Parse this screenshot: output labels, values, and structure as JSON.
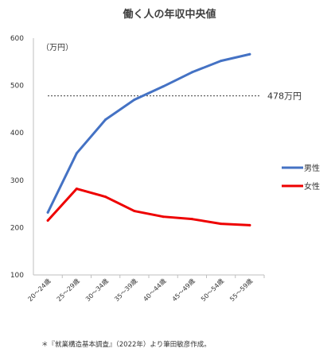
{
  "chart_data": {
    "type": "line",
    "title": "働く人の年収中央値",
    "unit_label": "（万円）",
    "categories": [
      "20〜24歳",
      "25〜29歳",
      "30〜34歳",
      "35〜39歳",
      "40〜44歳",
      "45〜49歳",
      "50〜54歳",
      "55〜59歳"
    ],
    "series": [
      {
        "name": "男性",
        "color": "#4472c4",
        "values": [
          232,
          357,
          428,
          470,
          498,
          528,
          552,
          566
        ]
      },
      {
        "name": "女性",
        "color": "#ee0000",
        "values": [
          215,
          282,
          265,
          235,
          223,
          218,
          208,
          205
        ]
      }
    ],
    "ylim": [
      100,
      600
    ],
    "yticks": [
      100,
      200,
      300,
      400,
      500,
      600
    ],
    "reference_line": {
      "value": 478,
      "label": "478万円",
      "style": "dashed"
    },
    "legend_position": "right",
    "grid": false,
    "footnote": "＊『就業構造基本調査』（2022年）より筆田敏彦作成。"
  }
}
